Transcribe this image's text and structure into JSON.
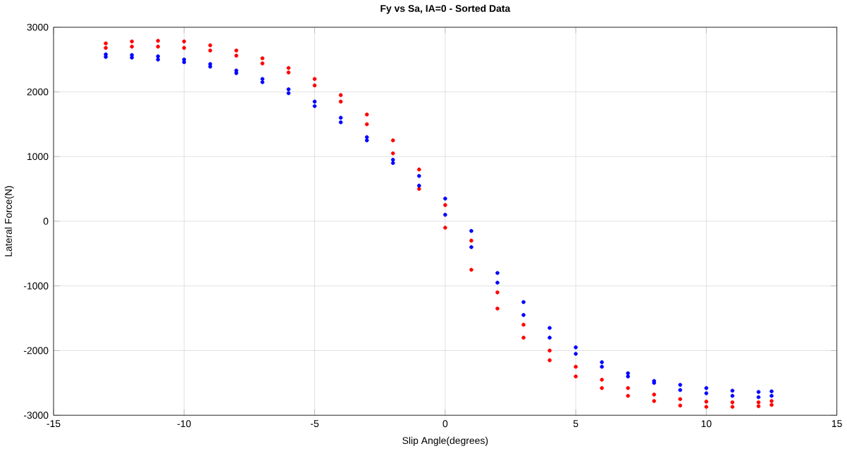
{
  "chart_data": {
    "type": "scatter",
    "title": "Fy vs Sa, IA=0 - Sorted Data",
    "xlabel": "Slip Angle(degrees)",
    "ylabel": "Lateral Force(N)",
    "xlim": [
      -15,
      15
    ],
    "xticks": [
      -15,
      -10,
      -5,
      0,
      5,
      10,
      15
    ],
    "ylim": [
      -3000,
      3000
    ],
    "yticks": [
      -3000,
      -2000,
      -1000,
      0,
      1000,
      2000,
      3000
    ],
    "grid": true,
    "series": [
      {
        "color": "#ff0000",
        "x": [
          -13,
          -12,
          -11,
          -10,
          -9,
          -8,
          -7,
          -6,
          -5,
          -4,
          -3,
          -2,
          -1,
          0,
          1,
          2,
          3,
          4,
          5,
          6,
          7,
          8,
          9,
          10,
          11,
          12,
          12.5
        ],
        "values": [
          2750,
          2780,
          2790,
          2780,
          2720,
          2640,
          2520,
          2370,
          2200,
          1950,
          1650,
          1250,
          800,
          250,
          -300,
          -1100,
          -1600,
          -2000,
          -2250,
          -2450,
          -2580,
          -2680,
          -2750,
          -2790,
          -2800,
          -2800,
          -2780
        ]
      },
      {
        "color": "#ff0000",
        "x": [
          -13,
          -12,
          -11,
          -10,
          -9,
          -8,
          -7,
          -6,
          -5,
          -4,
          -3,
          -2,
          -1,
          0,
          1,
          2,
          3,
          4,
          5,
          6,
          7,
          8,
          9,
          10,
          11,
          12,
          12.5
        ],
        "values": [
          2680,
          2700,
          2700,
          2680,
          2640,
          2560,
          2440,
          2300,
          2100,
          1850,
          1500,
          1050,
          500,
          -100,
          -750,
          -1350,
          -1800,
          -2150,
          -2400,
          -2580,
          -2700,
          -2780,
          -2850,
          -2870,
          -2870,
          -2860,
          -2840
        ]
      },
      {
        "color": "#0000ff",
        "x": [
          -13,
          -12,
          -11,
          -10,
          -9,
          -8,
          -7,
          -6,
          -5,
          -4,
          -3,
          -2,
          -1,
          0,
          1,
          2,
          3,
          4,
          5,
          6,
          7,
          8,
          9,
          10,
          11,
          12,
          12.5
        ],
        "values": [
          2580,
          2570,
          2550,
          2500,
          2430,
          2330,
          2200,
          2040,
          1850,
          1600,
          1300,
          950,
          550,
          100,
          -400,
          -950,
          -1450,
          -1800,
          -2050,
          -2250,
          -2400,
          -2500,
          -2610,
          -2660,
          -2700,
          -2720,
          -2700
        ]
      },
      {
        "color": "#0000ff",
        "x": [
          -13,
          -12,
          -11,
          -10,
          -9,
          -8,
          -7,
          -6,
          -5,
          -4,
          -3,
          -2,
          -1,
          0,
          1,
          2,
          3,
          4,
          5,
          6,
          7,
          8,
          9,
          10,
          11,
          12,
          12.5
        ],
        "values": [
          2540,
          2530,
          2500,
          2460,
          2390,
          2290,
          2150,
          1980,
          1780,
          1530,
          1250,
          900,
          700,
          350,
          -150,
          -800,
          -1250,
          -1650,
          -1950,
          -2180,
          -2350,
          -2470,
          -2530,
          -2580,
          -2620,
          -2640,
          -2630
        ]
      }
    ]
  }
}
